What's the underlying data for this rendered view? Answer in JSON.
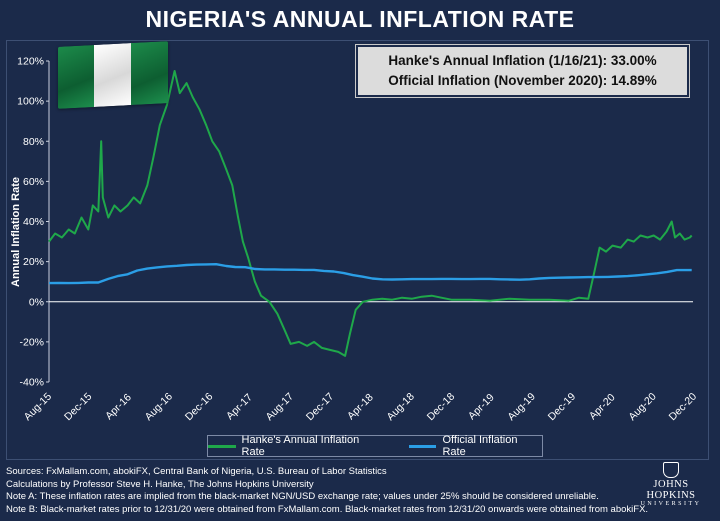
{
  "title": "NIGERIA'S ANNUAL INFLATION RATE",
  "infobox": {
    "line1": "Hanke's Annual Inflation (1/16/21): 33.00%",
    "line2": "Official Inflation (November 2020): 14.89%"
  },
  "chart_data": {
    "type": "line",
    "title": "NIGERIA'S ANNUAL INFLATION RATE",
    "ylabel": "Annual Inflation Rate",
    "ylim": [
      -40,
      120
    ],
    "yticks": [
      -40,
      -20,
      0,
      20,
      40,
      60,
      80,
      100,
      120
    ],
    "ytick_labels": [
      "-40%",
      "-20%",
      "0%",
      "20%",
      "40%",
      "60%",
      "80%",
      "100%",
      "120%"
    ],
    "xlim": [
      "2015-08-01",
      "2021-01-20"
    ],
    "xticks": [
      "Aug-15",
      "Dec-15",
      "Apr-16",
      "Aug-16",
      "Dec-16",
      "Apr-17",
      "Aug-17",
      "Dec-17",
      "Apr-18",
      "Aug-18",
      "Dec-18",
      "Apr-19",
      "Aug-19",
      "Dec-19",
      "Apr-20",
      "Aug-20",
      "Dec-20"
    ],
    "grid": false,
    "legend": "bottom",
    "series": [
      {
        "name": "Hanke's Annual Inflation Rate",
        "color": "#1fa84a",
        "points": [
          [
            "2015-08-01",
            30
          ],
          [
            "2015-08-20",
            34
          ],
          [
            "2015-09-10",
            32
          ],
          [
            "2015-10-01",
            36
          ],
          [
            "2015-10-20",
            34
          ],
          [
            "2015-11-10",
            42
          ],
          [
            "2015-12-01",
            36
          ],
          [
            "2015-12-15",
            48
          ],
          [
            "2016-01-01",
            45
          ],
          [
            "2016-01-10",
            80
          ],
          [
            "2016-01-15",
            52
          ],
          [
            "2016-02-01",
            42
          ],
          [
            "2016-02-20",
            48
          ],
          [
            "2016-03-10",
            45
          ],
          [
            "2016-04-01",
            48
          ],
          [
            "2016-04-20",
            52
          ],
          [
            "2016-05-10",
            49
          ],
          [
            "2016-06-01",
            58
          ],
          [
            "2016-06-20",
            72
          ],
          [
            "2016-07-10",
            88
          ],
          [
            "2016-08-01",
            98
          ],
          [
            "2016-08-15",
            108
          ],
          [
            "2016-08-25",
            115
          ],
          [
            "2016-09-10",
            104
          ],
          [
            "2016-10-01",
            109
          ],
          [
            "2016-10-20",
            102
          ],
          [
            "2016-11-10",
            96
          ],
          [
            "2016-12-01",
            88
          ],
          [
            "2016-12-20",
            80
          ],
          [
            "2017-01-10",
            75
          ],
          [
            "2017-02-01",
            66
          ],
          [
            "2017-02-20",
            58
          ],
          [
            "2017-03-10",
            42
          ],
          [
            "2017-03-25",
            30
          ],
          [
            "2017-04-10",
            22
          ],
          [
            "2017-05-01",
            10
          ],
          [
            "2017-05-20",
            3
          ],
          [
            "2017-06-15",
            0
          ],
          [
            "2017-07-10",
            -6
          ],
          [
            "2017-08-01",
            -14
          ],
          [
            "2017-08-20",
            -21
          ],
          [
            "2017-09-15",
            -20
          ],
          [
            "2017-10-10",
            -22
          ],
          [
            "2017-11-01",
            -20
          ],
          [
            "2017-11-25",
            -23
          ],
          [
            "2017-12-20",
            -24
          ],
          [
            "2018-01-15",
            -25
          ],
          [
            "2018-02-05",
            -27
          ],
          [
            "2018-02-20",
            -16
          ],
          [
            "2018-03-10",
            -4
          ],
          [
            "2018-04-01",
            0
          ],
          [
            "2018-05-01",
            1
          ],
          [
            "2018-06-01",
            1.5
          ],
          [
            "2018-07-01",
            1
          ],
          [
            "2018-08-01",
            2
          ],
          [
            "2018-09-01",
            1.5
          ],
          [
            "2018-10-01",
            2.5
          ],
          [
            "2018-11-01",
            3
          ],
          [
            "2018-12-01",
            2
          ],
          [
            "2019-01-01",
            1
          ],
          [
            "2019-03-01",
            1
          ],
          [
            "2019-05-01",
            0.5
          ],
          [
            "2019-07-01",
            1.5
          ],
          [
            "2019-09-01",
            1
          ],
          [
            "2019-11-01",
            1
          ],
          [
            "2020-01-01",
            0.5
          ],
          [
            "2020-02-01",
            2
          ],
          [
            "2020-03-01",
            1.5
          ],
          [
            "2020-03-20",
            15
          ],
          [
            "2020-04-05",
            27
          ],
          [
            "2020-04-25",
            25
          ],
          [
            "2020-05-15",
            28
          ],
          [
            "2020-06-10",
            27
          ],
          [
            "2020-07-01",
            31
          ],
          [
            "2020-07-20",
            30
          ],
          [
            "2020-08-10",
            33
          ],
          [
            "2020-09-01",
            32
          ],
          [
            "2020-09-20",
            33
          ],
          [
            "2020-10-10",
            31
          ],
          [
            "2020-10-30",
            35
          ],
          [
            "2020-11-15",
            40
          ],
          [
            "2020-11-25",
            32
          ],
          [
            "2020-12-10",
            34
          ],
          [
            "2020-12-25",
            31
          ],
          [
            "2021-01-10",
            32
          ],
          [
            "2021-01-16",
            33
          ]
        ]
      },
      {
        "name": "Official Inflation Rate",
        "color": "#2b9ee6",
        "points": [
          [
            "2015-08-01",
            9.3
          ],
          [
            "2015-09-01",
            9.4
          ],
          [
            "2015-10-01",
            9.3
          ],
          [
            "2015-11-01",
            9.4
          ],
          [
            "2015-12-01",
            9.6
          ],
          [
            "2016-01-01",
            9.6
          ],
          [
            "2016-02-01",
            11.4
          ],
          [
            "2016-03-01",
            12.8
          ],
          [
            "2016-04-01",
            13.7
          ],
          [
            "2016-05-01",
            15.6
          ],
          [
            "2016-06-01",
            16.5
          ],
          [
            "2016-07-01",
            17.1
          ],
          [
            "2016-08-01",
            17.6
          ],
          [
            "2016-09-01",
            17.9
          ],
          [
            "2016-10-01",
            18.3
          ],
          [
            "2016-11-01",
            18.5
          ],
          [
            "2016-12-01",
            18.6
          ],
          [
            "2017-01-01",
            18.7
          ],
          [
            "2017-02-01",
            17.8
          ],
          [
            "2017-03-01",
            17.3
          ],
          [
            "2017-04-01",
            17.2
          ],
          [
            "2017-05-01",
            16.3
          ],
          [
            "2017-06-01",
            16.1
          ],
          [
            "2017-07-01",
            16.1
          ],
          [
            "2017-08-01",
            16.0
          ],
          [
            "2017-09-01",
            16.0
          ],
          [
            "2017-10-01",
            15.9
          ],
          [
            "2017-11-01",
            15.9
          ],
          [
            "2017-12-01",
            15.4
          ],
          [
            "2018-01-01",
            15.1
          ],
          [
            "2018-02-01",
            14.3
          ],
          [
            "2018-03-01",
            13.3
          ],
          [
            "2018-04-01",
            12.5
          ],
          [
            "2018-05-01",
            11.6
          ],
          [
            "2018-06-01",
            11.2
          ],
          [
            "2018-07-01",
            11.1
          ],
          [
            "2018-08-01",
            11.2
          ],
          [
            "2018-09-01",
            11.3
          ],
          [
            "2018-10-01",
            11.3
          ],
          [
            "2018-11-01",
            11.3
          ],
          [
            "2018-12-01",
            11.4
          ],
          [
            "2019-01-01",
            11.4
          ],
          [
            "2019-02-01",
            11.3
          ],
          [
            "2019-03-01",
            11.3
          ],
          [
            "2019-04-01",
            11.4
          ],
          [
            "2019-05-01",
            11.4
          ],
          [
            "2019-06-01",
            11.2
          ],
          [
            "2019-07-01",
            11.1
          ],
          [
            "2019-08-01",
            11.0
          ],
          [
            "2019-09-01",
            11.2
          ],
          [
            "2019-10-01",
            11.6
          ],
          [
            "2019-11-01",
            11.9
          ],
          [
            "2019-12-01",
            12.0
          ],
          [
            "2020-01-01",
            12.1
          ],
          [
            "2020-02-01",
            12.2
          ],
          [
            "2020-03-01",
            12.3
          ],
          [
            "2020-04-01",
            12.3
          ],
          [
            "2020-05-01",
            12.4
          ],
          [
            "2020-06-01",
            12.6
          ],
          [
            "2020-07-01",
            12.8
          ],
          [
            "2020-08-01",
            13.2
          ],
          [
            "2020-09-01",
            13.7
          ],
          [
            "2020-10-01",
            14.2
          ],
          [
            "2020-11-01",
            14.9
          ],
          [
            "2020-12-01",
            15.8
          ],
          [
            "2021-01-16",
            15.8
          ]
        ]
      }
    ]
  },
  "legend": {
    "hanke_label": "Hanke's Annual Inflation Rate",
    "official_label": "Official Inflation Rate",
    "hanke_color": "#1fa84a",
    "official_color": "#2b9ee6"
  },
  "notes": {
    "sources": "Sources: FxMallam.com, abokiFX, Central Bank of Nigeria, U.S. Bureau of Labor Statistics",
    "calculations": "Calculations by Professor Steve H. Hanke, The Johns Hopkins University",
    "note_a": "Note A: These inflation rates are implied from the black-market NGN/USD exchange rate; values under 25% should be considered unreliable.",
    "note_b": "Note B: Black-market rates prior to 12/31/20 were obtained from FxMallam.com. Black-market rates from 12/31/20 onwards were obtained from abokiFX."
  },
  "logo": {
    "name": "JOHNS HOPKINS",
    "sub": "UNIVERSITY"
  }
}
